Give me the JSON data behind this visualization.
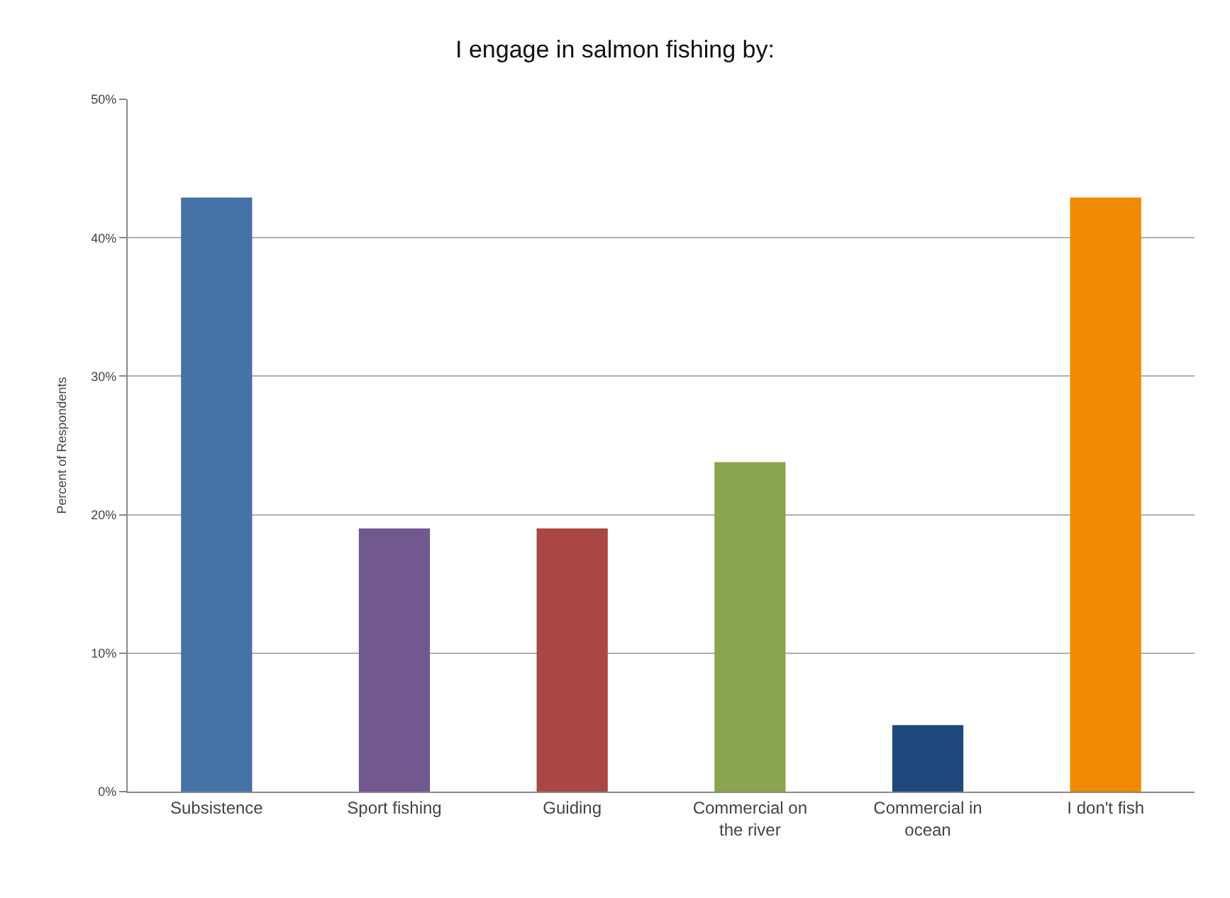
{
  "chart_data": {
    "type": "bar",
    "title": "I engage in salmon fishing by:",
    "ylabel": "Percent of Respondents",
    "categories": [
      "Subsistence",
      "Sport fishing",
      "Guiding",
      "Commercial on the river",
      "Commercial in ocean",
      "I don't fish"
    ],
    "values": [
      42.9,
      19.0,
      19.0,
      23.8,
      4.8,
      42.9
    ],
    "colors": [
      "#4572a7",
      "#71588f",
      "#aa4643",
      "#89a54e",
      "#1f497d",
      "#f08a00"
    ],
    "ylim": [
      0,
      50
    ],
    "yticks": [
      {
        "value": 0,
        "label": "0%"
      },
      {
        "value": 10,
        "label": "10%"
      },
      {
        "value": 20,
        "label": "20%"
      },
      {
        "value": 30,
        "label": "30%"
      },
      {
        "value": 40,
        "label": "40%"
      },
      {
        "value": 50,
        "label": "50%"
      }
    ],
    "grid": "y"
  }
}
